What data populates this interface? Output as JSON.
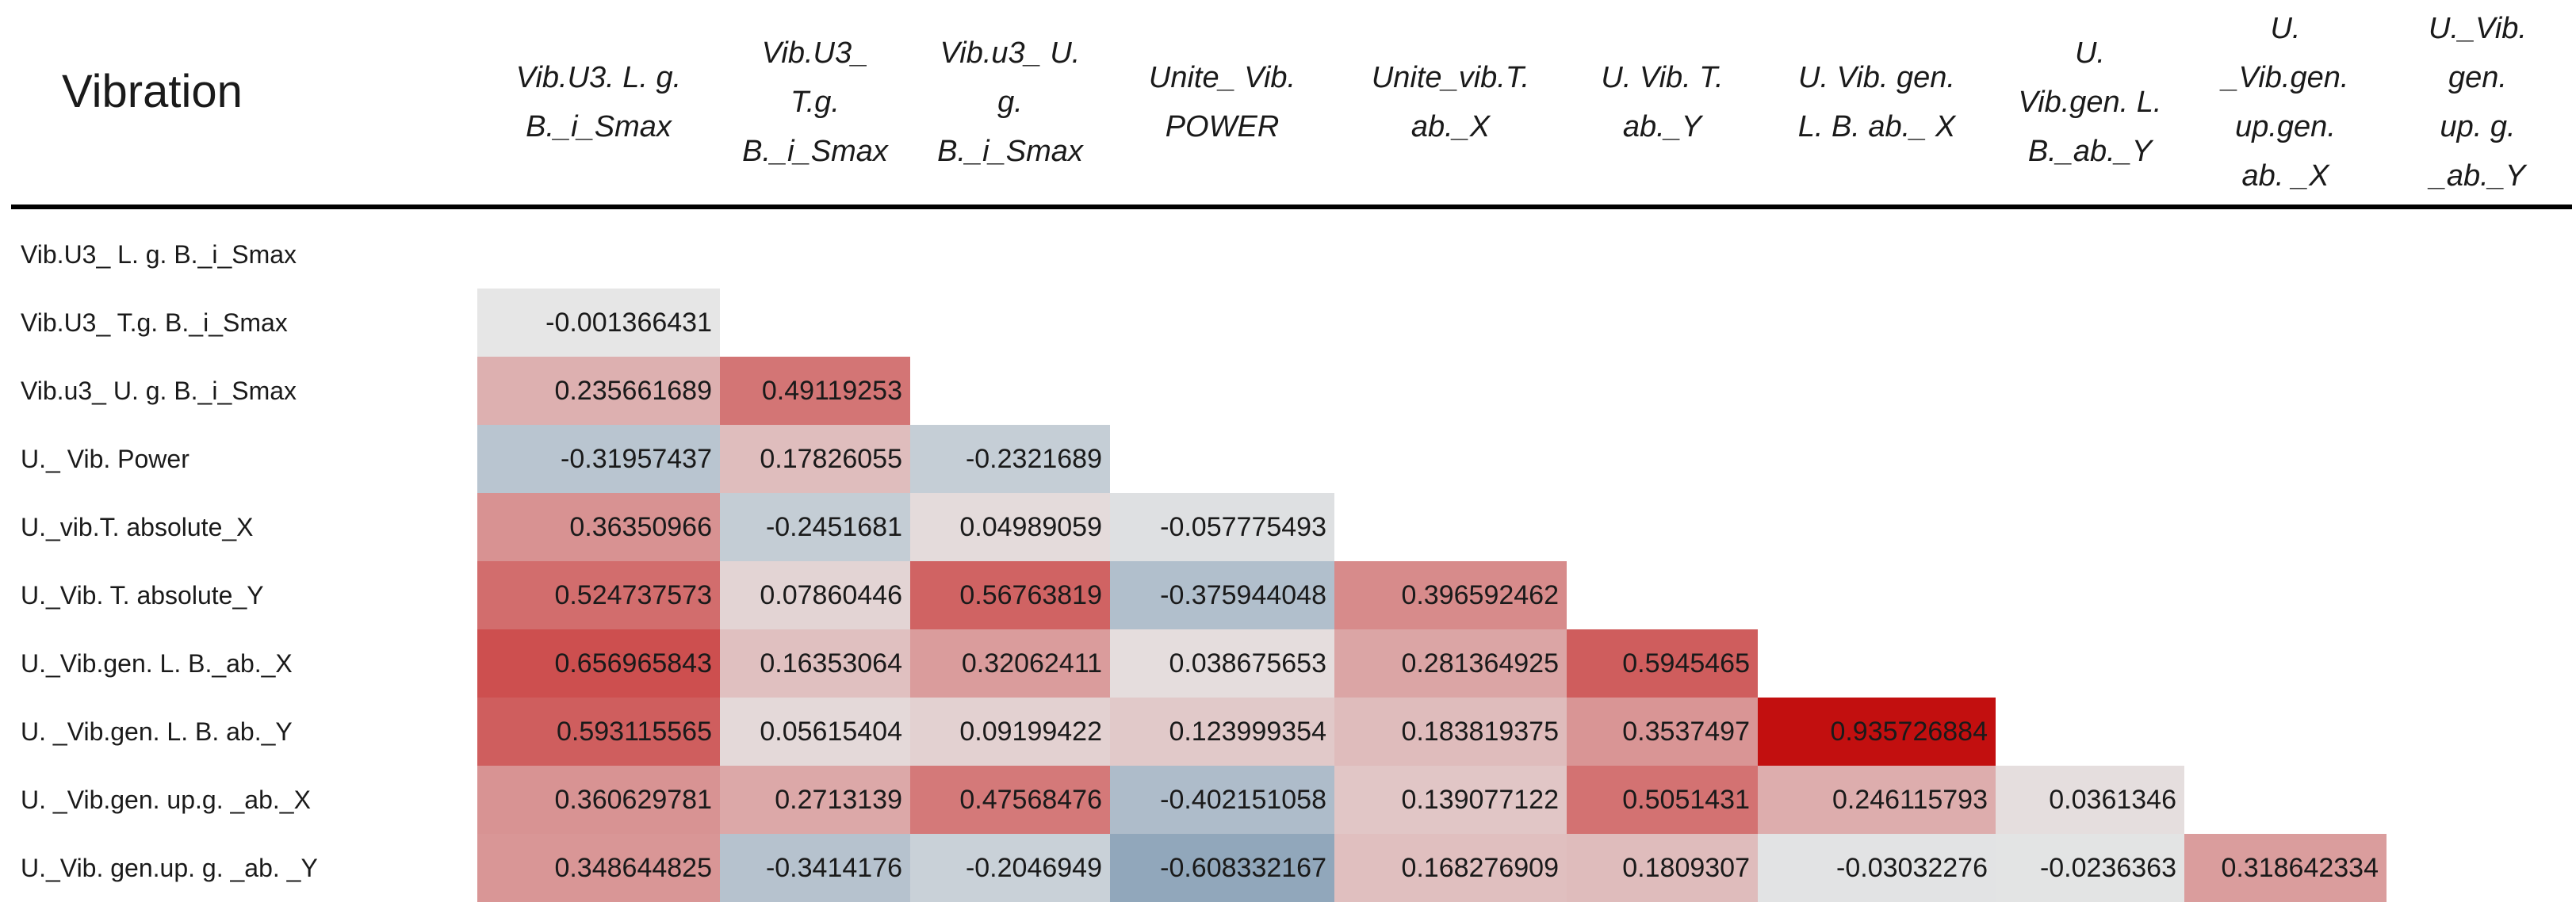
{
  "chart_data": {
    "type": "heatmap",
    "title": "Vibration",
    "columns": [
      "Vib.U3. L. g.\nB._i_Smax",
      "Vib.U3_\nT.g.\nB._i_Smax",
      "Vib.u3_ U.\ng.\nB._i_Smax",
      "Unite_ Vib.\nPOWER",
      "Unite_vib.T.\nab._X",
      "U. Vib. T.\nab._Y",
      "U. Vib. gen.\nL. B. ab._ X",
      "U.\nVib.gen. L.\nB._ab._Y",
      "U.\n_Vib.gen.\nup.gen.\nab. _X",
      "U._Vib.\ngen.\nup. g.\n_ab._Y"
    ],
    "rows": [
      "Vib.U3_ L. g. B._i_Smax",
      "Vib.U3_ T.g. B._i_Smax",
      "Vib.u3_ U. g. B._i_Smax",
      "U._ Vib. Power",
      "U._vib.T. absolute_X",
      "U._Vib. T. absolute_Y",
      "U._Vib.gen. L. B._ab._X",
      "U. _Vib.gen. L. B. ab._Y",
      "U. _Vib.gen. up.g. _ab._X",
      "U._Vib. gen.up. g. _ab. _Y"
    ],
    "values": [
      [],
      [
        "-0.001366431"
      ],
      [
        "0.235661689",
        "0.49119253"
      ],
      [
        "-0.31957437",
        "0.17826055",
        "-0.2321689"
      ],
      [
        "0.36350966",
        "-0.2451681",
        "0.04989059",
        "-0.057775493"
      ],
      [
        "0.524737573",
        "0.07860446",
        "0.56763819",
        "-0.375944048",
        "0.396592462"
      ],
      [
        "0.656965843",
        "0.16353064",
        "0.32062411",
        "0.038675653",
        "0.281364925",
        "0.5945465"
      ],
      [
        "0.593115565",
        "0.05615404",
        "0.09199422",
        "0.123999354",
        "0.183819375",
        "0.3537497",
        "0.935726884"
      ],
      [
        "0.360629781",
        "0.2713139",
        "0.47568476",
        "-0.402151058",
        "0.139077122",
        "0.5051431",
        "0.246115793",
        "0.0361346"
      ],
      [
        "0.348644825",
        "-0.3414176",
        "-0.2046949",
        "-0.608332167",
        "0.168276909",
        "0.1809307",
        "-0.03032276",
        "-0.0236363",
        "0.318642334"
      ]
    ],
    "colors": {
      "positive": "#c00000",
      "neutral": "#e6e6e6",
      "negative": "#5a7ea0"
    },
    "grid": false,
    "legend": "none"
  }
}
